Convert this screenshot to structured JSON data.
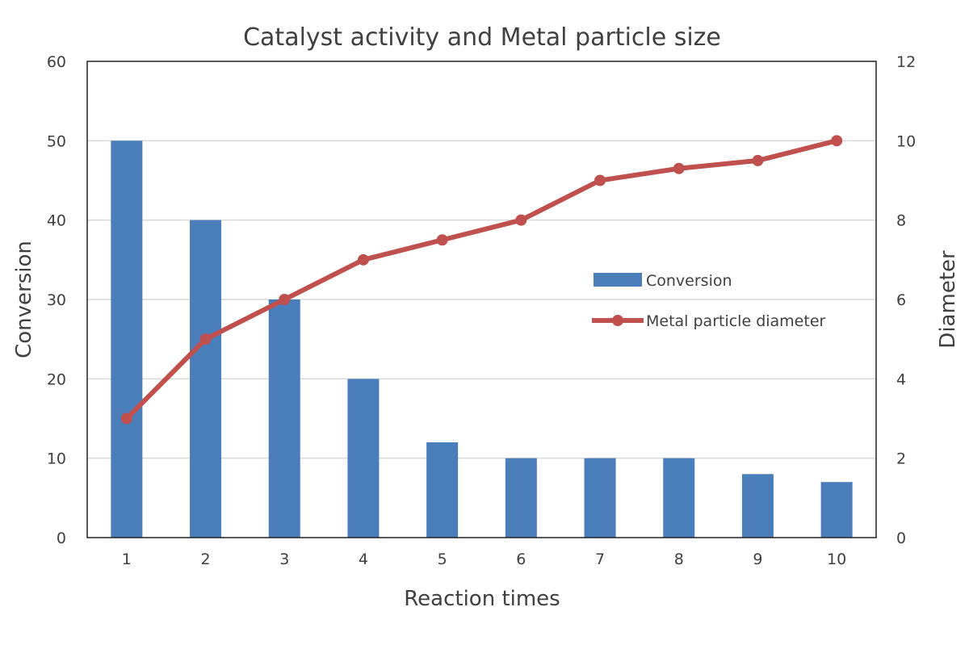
{
  "chart_data": {
    "type": "bar+line",
    "title": "Catalyst activity and Metal particle size",
    "xlabel": "Reaction times",
    "ylabel": "Conversion",
    "y2label": "Diameter",
    "categories": [
      "1",
      "2",
      "3",
      "4",
      "5",
      "6",
      "7",
      "8",
      "9",
      "10"
    ],
    "ylim": [
      0,
      60
    ],
    "y2lim": [
      0,
      12
    ],
    "yticks": [
      0,
      10,
      20,
      30,
      40,
      50,
      60
    ],
    "y2ticks": [
      0,
      2,
      4,
      6,
      8,
      10,
      12
    ],
    "grid": true,
    "legend_position": "center-right",
    "series": [
      {
        "name": "Conversion",
        "type": "bar",
        "axis": "left",
        "color": "#4a7ebb",
        "values": [
          50,
          40,
          30,
          20,
          12,
          10,
          10,
          10,
          8,
          7
        ]
      },
      {
        "name": "Metal particle diameter",
        "type": "line",
        "axis": "right",
        "color": "#c0504d",
        "values": [
          3,
          5,
          6,
          7,
          7.5,
          8,
          9,
          9.3,
          9.5,
          10
        ]
      }
    ]
  }
}
